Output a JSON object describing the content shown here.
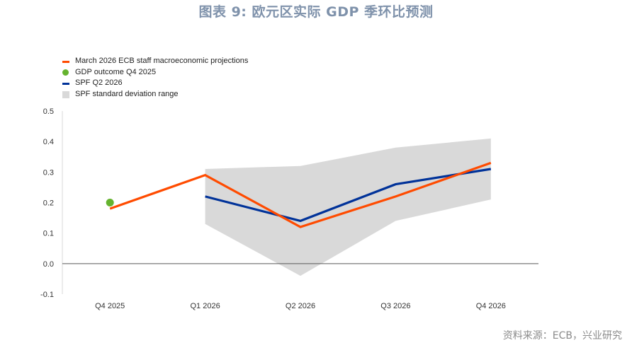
{
  "title": "图表 9: 欧元区实际 GDP 季环比预测",
  "source": "资料来源：ECB，兴业研究",
  "colors": {
    "title": "#7f92ab",
    "source": "#8a8a8a",
    "zero_line": "#595959",
    "axis_line": "#d9d9d9"
  },
  "chart_data": {
    "type": "line",
    "categories": [
      "Q4 2025",
      "Q1 2026",
      "Q2 2026",
      "Q3 2026",
      "Q4 2026"
    ],
    "yticks": [
      "0.5",
      "0.4",
      "0.3",
      "0.2",
      "0.1",
      "0.0",
      "-0.1"
    ],
    "ylim": [
      -0.1,
      0.5
    ],
    "grid": false,
    "legend_position": "top-left",
    "series": [
      {
        "name": "March 2026 ECB staff macroeconomic projections",
        "kind": "line",
        "color": "#ff4b00",
        "values": [
          0.18,
          0.29,
          0.12,
          0.22,
          0.33
        ]
      },
      {
        "name": "GDP outcome Q4 2025",
        "kind": "point",
        "color": "#65b32e",
        "values": [
          0.2,
          null,
          null,
          null,
          null
        ]
      },
      {
        "name": "SPF Q2 2026",
        "kind": "line",
        "color": "#003299",
        "values": [
          null,
          0.22,
          0.14,
          0.26,
          0.31
        ]
      },
      {
        "name": "SPF standard deviation range",
        "kind": "band",
        "color": "#d9d9d9",
        "lower": [
          null,
          0.13,
          -0.04,
          0.14,
          0.21
        ],
        "upper": [
          null,
          0.31,
          0.32,
          0.38,
          0.41
        ]
      }
    ]
  }
}
